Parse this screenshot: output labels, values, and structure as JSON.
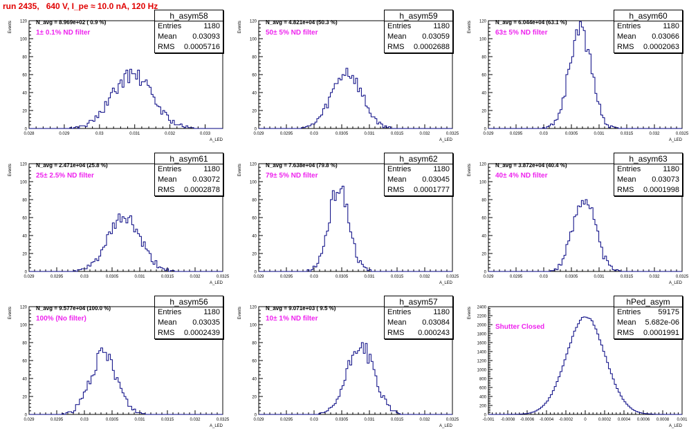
{
  "header": {
    "title": "run 2435,   640 V, I_pe ≈ 10.0 nA, 120 Hz"
  },
  "colors": {
    "histogram": "#000080",
    "filter_label": "#ee22ee",
    "title": "#e00000"
  },
  "stat_labels": {
    "entries": "Entries",
    "mean": "Mean",
    "rms": "RMS"
  },
  "axis": {
    "ylabel": "Events",
    "xlabel": "A_LED"
  },
  "chart_data": [
    {
      "type": "bar",
      "name": "h_asym58",
      "navg": "N_avg = 8.969e+02 ( 0.9 %)",
      "filter": "1± 0.1% ND filter",
      "stats": {
        "entries": "1180",
        "mean": "0.03093",
        "rms": "0.0005716"
      },
      "xlim": [
        0.028,
        0.0335
      ],
      "ylim": [
        0,
        120
      ],
      "xticks": [
        "0.028",
        "0.029",
        "0.03",
        "0.031",
        "0.032",
        "0.033"
      ],
      "xtick_values": [
        0.028,
        0.029,
        0.03,
        0.031,
        0.032,
        0.033
      ],
      "yticks": [
        "0",
        "20",
        "40",
        "60",
        "80",
        "100",
        "120"
      ],
      "center": 0.03093,
      "sigma": 0.00057,
      "peak": 60,
      "seed": 58
    },
    {
      "type": "bar",
      "name": "h_asym59",
      "navg": "N_avg = 4.821e+04 (50.3 %)",
      "filter": "50± 5% ND filter",
      "stats": {
        "entries": "1180",
        "mean": "0.03059",
        "rms": "0.0002688"
      },
      "xlim": [
        0.029,
        0.0325
      ],
      "ylim": [
        0,
        120
      ],
      "xticks": [
        "0.029",
        "0.0295",
        "0.03",
        "0.0305",
        "0.031",
        "0.0315",
        "0.032",
        "0.0325"
      ],
      "xtick_values": [
        0.029,
        0.0295,
        0.03,
        0.0305,
        0.031,
        0.0315,
        0.032,
        0.0325
      ],
      "yticks": [
        "0",
        "20",
        "40",
        "60",
        "80",
        "100",
        "120"
      ],
      "center": 0.03059,
      "sigma": 0.00027,
      "peak": 63,
      "seed": 59
    },
    {
      "type": "bar",
      "name": "h_asym60",
      "navg": "N_avg = 6.044e+04 (63.1 %)",
      "filter": "63± 5% ND filter",
      "stats": {
        "entries": "1180",
        "mean": "0.03066",
        "rms": "0.0002063"
      },
      "xlim": [
        0.029,
        0.0325
      ],
      "ylim": [
        0,
        120
      ],
      "xticks": [
        "0.029",
        "0.0295",
        "0.03",
        "0.0305",
        "0.031",
        "0.0315",
        "0.032",
        "0.0325"
      ],
      "xtick_values": [
        0.029,
        0.0295,
        0.03,
        0.0305,
        0.031,
        0.0315,
        0.032,
        0.0325
      ],
      "yticks": [
        "0",
        "20",
        "40",
        "60",
        "80",
        "100",
        "120"
      ],
      "center": 0.03066,
      "sigma": 0.0002,
      "peak": 110,
      "seed": 60
    },
    {
      "type": "bar",
      "name": "h_asym61",
      "navg": "N_avg = 2.471e+04 (25.8 %)",
      "filter": "25± 2.5% ND filter",
      "stats": {
        "entries": "1180",
        "mean": "0.03072",
        "rms": "0.0002878"
      },
      "xlim": [
        0.029,
        0.0325
      ],
      "ylim": [
        0,
        120
      ],
      "xticks": [
        "0.029",
        "0.0295",
        "0.03",
        "0.0305",
        "0.031",
        "0.0315",
        "0.032",
        "0.0325"
      ],
      "xtick_values": [
        0.029,
        0.0295,
        0.03,
        0.0305,
        0.031,
        0.0315,
        0.032,
        0.0325
      ],
      "yticks": [
        "0",
        "20",
        "40",
        "60",
        "80",
        "100",
        "120"
      ],
      "center": 0.03072,
      "sigma": 0.00029,
      "peak": 60,
      "seed": 61
    },
    {
      "type": "bar",
      "name": "h_asym62",
      "navg": "N_avg = 7.638e+04 (79.8 %)",
      "filter": "79± 5% ND filter",
      "stats": {
        "entries": "1180",
        "mean": "0.03045",
        "rms": "0.0001777"
      },
      "xlim": [
        0.029,
        0.0325
      ],
      "ylim": [
        0,
        120
      ],
      "xticks": [
        "0.029",
        "0.0295",
        "0.03",
        "0.0305",
        "0.031",
        "0.0315",
        "0.032",
        "0.0325"
      ],
      "xtick_values": [
        0.029,
        0.0295,
        0.03,
        0.0305,
        0.031,
        0.0315,
        0.032,
        0.0325
      ],
      "yticks": [
        "0",
        "20",
        "40",
        "60",
        "80",
        "100",
        "120"
      ],
      "center": 0.03045,
      "sigma": 0.00018,
      "peak": 95,
      "seed": 62
    },
    {
      "type": "bar",
      "name": "h_asym63",
      "navg": "N_avg = 3.872e+04 (40.4 %)",
      "filter": "40± 4% ND filter",
      "stats": {
        "entries": "1180",
        "mean": "0.03073",
        "rms": "0.0001998"
      },
      "xlim": [
        0.029,
        0.0325
      ],
      "ylim": [
        0,
        120
      ],
      "xticks": [
        "0.029",
        "0.0295",
        "0.03",
        "0.0305",
        "0.031",
        "0.0315",
        "0.032",
        "0.0325"
      ],
      "xtick_values": [
        0.029,
        0.0295,
        0.03,
        0.0305,
        0.031,
        0.0315,
        0.032,
        0.0325
      ],
      "yticks": [
        "0",
        "20",
        "40",
        "60",
        "80",
        "100",
        "120"
      ],
      "center": 0.03073,
      "sigma": 0.0002,
      "peak": 84,
      "seed": 63
    },
    {
      "type": "bar",
      "name": "h_asym56",
      "navg": "N_avg = 9.577e+04 (100.0 %)",
      "filter": "100% (No filter)",
      "stats": {
        "entries": "1180",
        "mean": "0.03035",
        "rms": "0.0002439"
      },
      "xlim": [
        0.029,
        0.0325
      ],
      "ylim": [
        0,
        120
      ],
      "xticks": [
        "0.029",
        "0.0295",
        "0.03",
        "0.0305",
        "0.031",
        "0.0315",
        "0.032",
        "0.0325"
      ],
      "xtick_values": [
        0.029,
        0.0295,
        0.03,
        0.0305,
        0.031,
        0.0315,
        0.032,
        0.0325
      ],
      "yticks": [
        "0",
        "20",
        "40",
        "60",
        "80",
        "100",
        "120"
      ],
      "center": 0.03035,
      "sigma": 0.00024,
      "peak": 66,
      "seed": 56
    },
    {
      "type": "bar",
      "name": "h_asym57",
      "navg": "N_avg = 9.071e+03 ( 9.5 %)",
      "filter": "10± 1% ND filter",
      "stats": {
        "entries": "1180",
        "mean": "0.03084",
        "rms": "0.000243"
      },
      "xlim": [
        0.029,
        0.0325
      ],
      "ylim": [
        0,
        120
      ],
      "xticks": [
        "0.029",
        "0.0295",
        "0.03",
        "0.0305",
        "0.031",
        "0.0315",
        "0.032",
        "0.0325"
      ],
      "xtick_values": [
        0.029,
        0.0295,
        0.03,
        0.0305,
        0.031,
        0.0315,
        0.032,
        0.0325
      ],
      "yticks": [
        "0",
        "20",
        "40",
        "60",
        "80",
        "100",
        "120"
      ],
      "center": 0.03084,
      "sigma": 0.00024,
      "peak": 78,
      "seed": 57
    },
    {
      "type": "bar",
      "name": "hPed_asym",
      "navg": "",
      "filter": "Shutter Closed",
      "stats": {
        "entries": "59175",
        "mean": "5.682e-06",
        "rms": "0.0001991"
      },
      "xlim": [
        -0.001,
        0.001
      ],
      "ylim": [
        0,
        2400
      ],
      "xticks": [
        "-0.001",
        "-0.0008",
        "-0.0006",
        "-0.0004",
        "-0.0002",
        "0",
        "0.0002",
        "0.0004",
        "0.0006",
        "0.0008",
        "0.001"
      ],
      "xtick_values": [
        -0.001,
        -0.0008,
        -0.0006,
        -0.0004,
        -0.0002,
        0,
        0.0002,
        0.0004,
        0.0006,
        0.0008,
        0.001
      ],
      "yticks": [
        "0",
        "200",
        "400",
        "600",
        "800",
        "1000",
        "1200",
        "1400",
        "1600",
        "1800",
        "2000",
        "2200",
        "2400"
      ],
      "center": 5.7e-06,
      "sigma": 0.000199,
      "peak": 2180,
      "seed": 99
    }
  ]
}
